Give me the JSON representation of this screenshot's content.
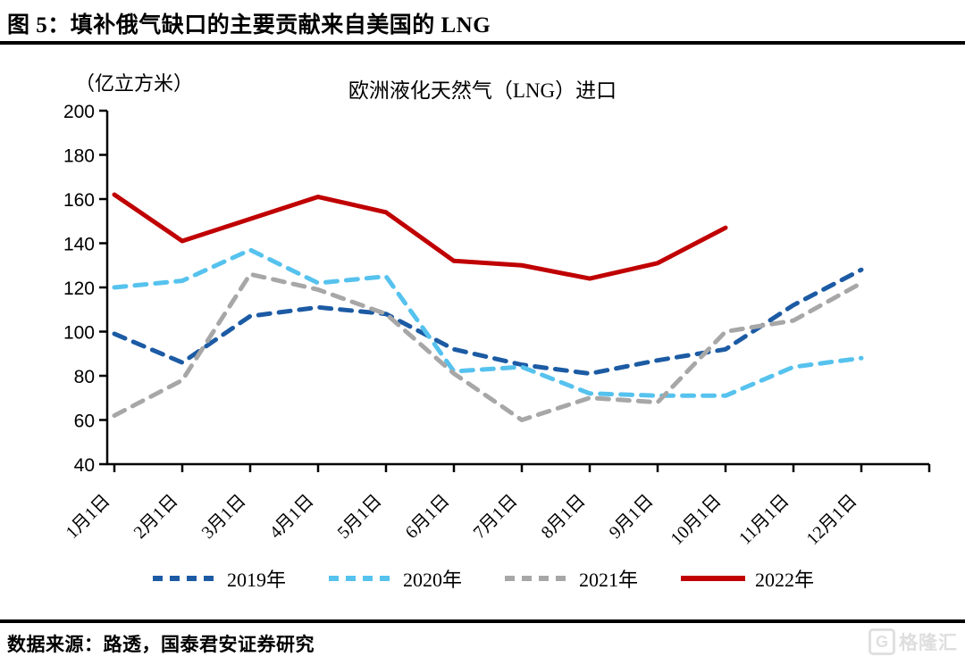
{
  "page": {
    "figure_title": "图 5：填补俄气缺口的主要贡献来自美国的 LNG",
    "source_note": "数据来源：路透，国泰君安证券研究",
    "watermark": "格隆汇"
  },
  "chart_data": {
    "type": "line",
    "title": "欧洲液化天然气（LNG）进口",
    "unit_label": "（亿立方米）",
    "categories": [
      "1月1日",
      "2月1日",
      "3月1日",
      "4月1日",
      "5月1日",
      "6月1日",
      "7月1日",
      "8月1日",
      "9月1日",
      "10月1日",
      "11月1日",
      "12月1日"
    ],
    "ylim": [
      40,
      200
    ],
    "yticks": [
      40,
      60,
      80,
      100,
      120,
      140,
      160,
      180,
      200
    ],
    "grid": false,
    "legend_position": "bottom",
    "axis_color": "#000000",
    "series": [
      {
        "name": "2019年",
        "color": "#1C5BA4",
        "style": "dashed",
        "values": [
          99,
          86,
          107,
          111,
          108,
          92,
          85,
          81,
          87,
          92,
          112,
          128
        ]
      },
      {
        "name": "2020年",
        "color": "#56C2EE",
        "style": "dashed",
        "values": [
          120,
          123,
          137,
          122,
          125,
          82,
          84,
          72,
          71,
          71,
          84,
          88
        ]
      },
      {
        "name": "2021年",
        "color": "#A7A7A7",
        "style": "dashed",
        "values": [
          62,
          78,
          126,
          119,
          108,
          81,
          60,
          70,
          68,
          100,
          105,
          122
        ]
      },
      {
        "name": "2022年",
        "color": "#C00000",
        "style": "solid",
        "values": [
          162,
          141,
          151,
          161,
          154,
          132,
          130,
          124,
          131,
          147,
          null,
          null
        ]
      }
    ]
  }
}
